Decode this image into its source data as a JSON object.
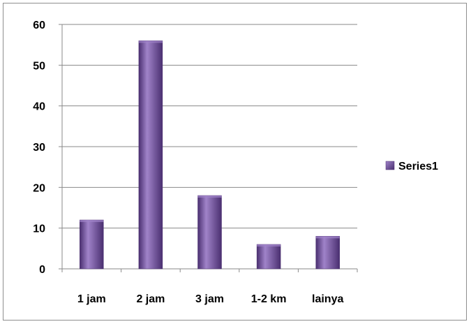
{
  "chart_data": {
    "type": "bar",
    "categories": [
      "1 jam",
      "2 jam",
      "3 jam",
      "1-2 km",
      "lainya"
    ],
    "series": [
      {
        "name": "Series1",
        "values": [
          12,
          56,
          18,
          6,
          8
        ]
      }
    ],
    "ylim": [
      0,
      60
    ],
    "yticks": [
      "0",
      "10",
      "20",
      "30",
      "40",
      "50",
      "60"
    ],
    "grid": true,
    "legend_position": "right",
    "colors": {
      "bar": "#7b5aa6",
      "bar_light": "#a083c9",
      "bar_dark": "#4a2f70",
      "grid": "#8a8a8a",
      "axis": "#8a8a8a"
    }
  }
}
